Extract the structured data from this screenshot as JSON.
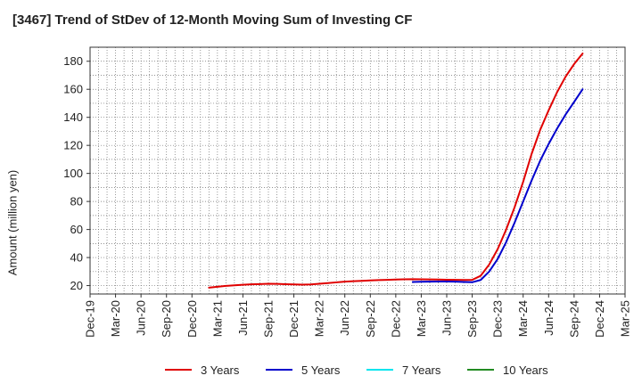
{
  "chart_data": {
    "type": "line",
    "title": "[3467]  Trend of StDev of 12-Month Moving Sum of Investing CF",
    "xlabel": "",
    "ylabel": "Amount (million yen)",
    "ylim": [
      14,
      190
    ],
    "y_ticks": [
      20,
      40,
      60,
      80,
      100,
      120,
      140,
      160,
      180
    ],
    "x_tick_labels": [
      "Dec-19",
      "Mar-20",
      "Jun-20",
      "Sep-20",
      "Dec-20",
      "Mar-21",
      "Jun-21",
      "Sep-21",
      "Dec-21",
      "Mar-22",
      "Jun-22",
      "Sep-22",
      "Dec-22",
      "Mar-23",
      "Jun-23",
      "Sep-23",
      "Dec-23",
      "Mar-24",
      "Jun-24",
      "Sep-24",
      "Dec-24",
      "Mar-25"
    ],
    "grid": true,
    "legend_position": "bottom",
    "series": [
      {
        "name": "3 Years",
        "color": "#e00000",
        "points": [
          [
            "Feb-21",
            18.5
          ],
          [
            "Mar-21",
            19.2
          ],
          [
            "Apr-21",
            19.8
          ],
          [
            "May-21",
            20.2
          ],
          [
            "Jun-21",
            20.6
          ],
          [
            "Jul-21",
            20.9
          ],
          [
            "Aug-21",
            21.1
          ],
          [
            "Sep-21",
            21.3
          ],
          [
            "Oct-21",
            21.2
          ],
          [
            "Nov-21",
            21.0
          ],
          [
            "Dec-21",
            20.8
          ],
          [
            "Jan-22",
            20.7
          ],
          [
            "Feb-22",
            20.8
          ],
          [
            "Mar-22",
            21.3
          ],
          [
            "Apr-22",
            21.8
          ],
          [
            "May-22",
            22.3
          ],
          [
            "Jun-22",
            22.8
          ],
          [
            "Jul-22",
            23.1
          ],
          [
            "Aug-22",
            23.4
          ],
          [
            "Sep-22",
            23.7
          ],
          [
            "Oct-22",
            23.9
          ],
          [
            "Nov-22",
            24.1
          ],
          [
            "Dec-22",
            24.3
          ],
          [
            "Jan-23",
            24.5
          ],
          [
            "Feb-23",
            24.6
          ],
          [
            "Mar-23",
            24.5
          ],
          [
            "Apr-23",
            24.4
          ],
          [
            "May-23",
            24.3
          ],
          [
            "Jun-23",
            24.2
          ],
          [
            "Jul-23",
            24.1
          ],
          [
            "Aug-23",
            24.0
          ],
          [
            "Sep-23",
            24.1
          ],
          [
            "Oct-23",
            27.0
          ],
          [
            "Nov-23",
            35.0
          ],
          [
            "Dec-23",
            46.0
          ],
          [
            "Jan-24",
            60.0
          ],
          [
            "Feb-24",
            76.0
          ],
          [
            "Mar-24",
            94.0
          ],
          [
            "Apr-24",
            114.0
          ],
          [
            "May-24",
            131.0
          ],
          [
            "Jun-24",
            145.0
          ],
          [
            "Jul-24",
            158.0
          ],
          [
            "Aug-24",
            169.0
          ],
          [
            "Sep-24",
            178.0
          ],
          [
            "Oct-24",
            185.5
          ]
        ]
      },
      {
        "name": "5 Years",
        "color": "#0000cc",
        "points": [
          [
            "Feb-23",
            22.6
          ],
          [
            "Mar-23",
            22.7
          ],
          [
            "Apr-23",
            22.8
          ],
          [
            "May-23",
            22.9
          ],
          [
            "Jun-23",
            22.9
          ],
          [
            "Jul-23",
            22.8
          ],
          [
            "Aug-23",
            22.6
          ],
          [
            "Sep-23",
            22.4
          ],
          [
            "Oct-23",
            24.0
          ],
          [
            "Nov-23",
            30.0
          ],
          [
            "Dec-23",
            39.0
          ],
          [
            "Jan-24",
            51.0
          ],
          [
            "Feb-24",
            65.0
          ],
          [
            "Mar-24",
            80.0
          ],
          [
            "Apr-24",
            95.0
          ],
          [
            "May-24",
            109.0
          ],
          [
            "Jun-24",
            121.0
          ],
          [
            "Jul-24",
            132.0
          ],
          [
            "Aug-24",
            142.0
          ],
          [
            "Sep-24",
            151.0
          ],
          [
            "Oct-24",
            160.0
          ]
        ]
      },
      {
        "name": "7 Years",
        "color": "#00e5ee",
        "points": []
      },
      {
        "name": "10 Years",
        "color": "#228b22",
        "points": []
      }
    ]
  }
}
